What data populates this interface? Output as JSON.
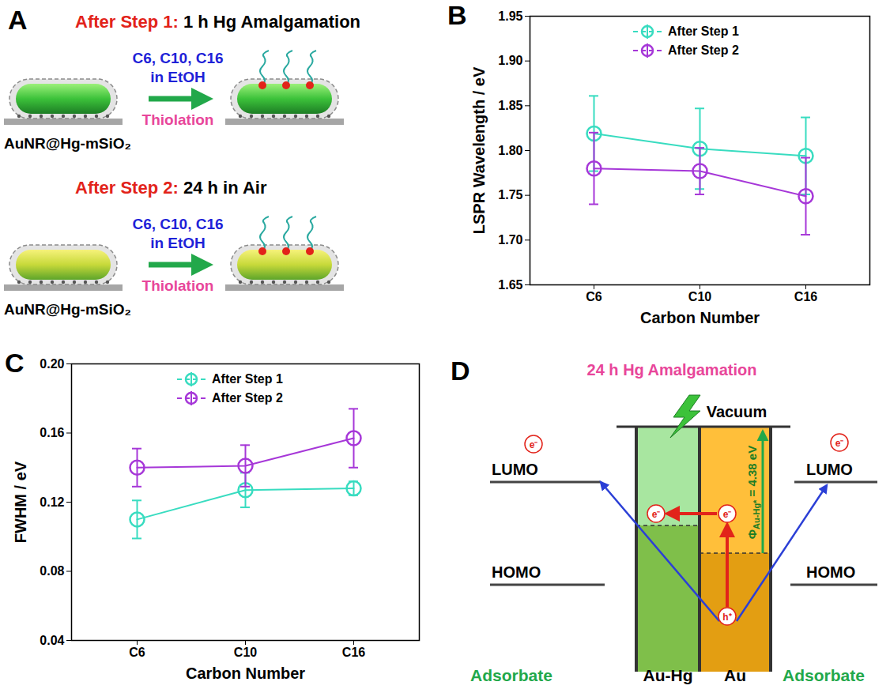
{
  "panel_labels": [
    "A",
    "B",
    "C",
    "D"
  ],
  "chart_data": [
    {
      "type": "line",
      "x_label": "Carbon Number",
      "y_label": "LSPR Wavelength / eV",
      "categories": [
        "C6",
        "C10",
        "C16"
      ],
      "ylim": [
        1.65,
        1.95
      ],
      "yticks": [
        1.65,
        {
          "value": 1.7,
          "label": "1.70"
        },
        1.75,
        {
          "value": 1.8,
          "label": "1.80"
        },
        1.85,
        {
          "value": 1.9,
          "label": "1.90"
        },
        1.95
      ],
      "legend": "top",
      "marker": "open_circle",
      "series": [
        {
          "name": "After Step 1",
          "color": "#38dcc0",
          "values": [
            1.819,
            1.802,
            1.794
          ],
          "errors": [
            0.042,
            0.045,
            0.043
          ]
        },
        {
          "name": "After Step 2",
          "color": "#a637d8",
          "values": [
            1.78,
            1.777,
            1.749
          ],
          "errors": [
            0.04,
            0.026,
            0.043
          ]
        }
      ]
    },
    {
      "type": "line",
      "x_label": "Carbon Number",
      "y_label": "FWHM / eV",
      "categories": [
        "C6",
        "C10",
        "C16"
      ],
      "ylim": [
        0.04,
        0.2
      ],
      "yticks": [
        0.04,
        0.08,
        0.12,
        0.16,
        {
          "value": 0.2,
          "label": "0.20"
        }
      ],
      "legend": "top",
      "marker": "open_circle",
      "series": [
        {
          "name": "After Step 1",
          "color": "#38dcc0",
          "values": [
            0.11,
            0.127,
            0.128
          ],
          "errors": [
            0.011,
            0.01,
            0.004
          ]
        },
        {
          "name": "After Step 2",
          "color": "#a637d8",
          "values": [
            0.14,
            0.141,
            0.157
          ],
          "errors": [
            0.011,
            0.012,
            0.017
          ]
        }
      ]
    }
  ],
  "diagram_A": {
    "steps": [
      {
        "heading": "After Step 1:",
        "condition": "1 h Hg Amalgamation",
        "reagents": "C6, C10, C16",
        "solvent": "in EtOH",
        "process": "Thiolation",
        "sample": "AuNR@Hg-mSiO₂"
      },
      {
        "heading": "After Step 2:",
        "condition": "24 h in Air",
        "reagents": "C6, C10, C16",
        "solvent": "in EtOH",
        "process": "Thiolation",
        "sample": "AuNR@Hg-mSiO₂"
      }
    ]
  },
  "diagram_D": {
    "title": "24 h Hg Amalgamation",
    "vacuum": "Vacuum",
    "left": {
      "lumo": "LUMO",
      "homo": "HOMO"
    },
    "right": {
      "lumo": "LUMO",
      "homo": "HOMO"
    },
    "electrons": [
      "e⁻",
      "e⁻",
      "e⁻",
      "e⁻"
    ],
    "hole": "h⁺",
    "work_function": {
      "symbol": "Φ",
      "subscript": "Au-Hg*",
      "text": " = 4.38 eV"
    },
    "columns": [
      "Adsorbate",
      "Au-Hg",
      "Au",
      "Adsorbate"
    ]
  }
}
